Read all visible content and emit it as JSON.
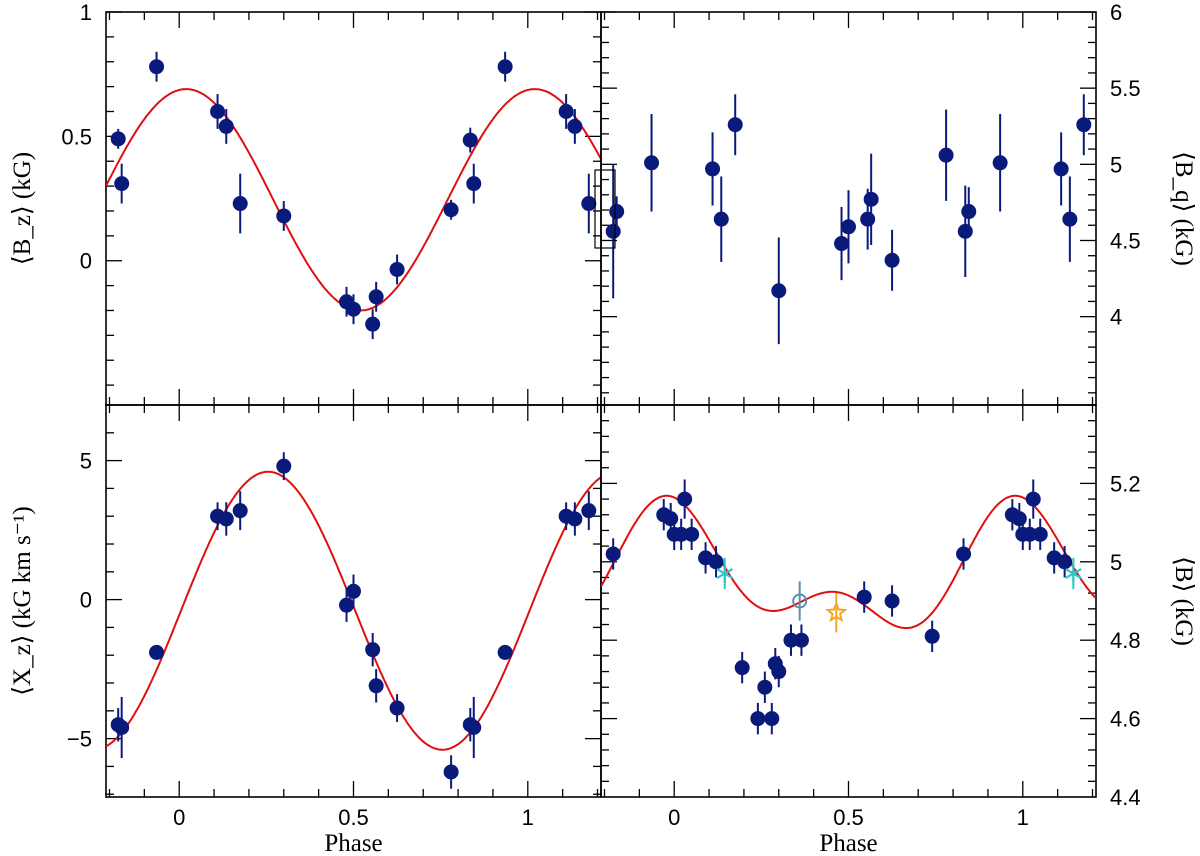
{
  "colors": {
    "points": "#0a1a7a",
    "fit": "#e01010",
    "cyan_asterisk": "#2ec4c9",
    "open_circle": "#5a8fb0",
    "orange_star": "#f5a623",
    "frame": "#000000"
  },
  "chart_data": [
    {
      "type": "scatter",
      "panel": "top-left",
      "xlabel": "",
      "ylabel": "⟨B_z⟩ (kG)",
      "xlim": [
        -0.21,
        1.21
      ],
      "ylim": [
        -0.58,
        1.0
      ],
      "yticks": [
        0,
        0.5,
        1
      ],
      "ytick_labels": [
        "0",
        "0.5",
        "1"
      ],
      "y_axis_side": "left",
      "show_x_tick_labels": false,
      "fit": {
        "type": "sine",
        "mean": 0.245,
        "amp": 0.445,
        "phase_max": 0.02,
        "harmonic2": 0,
        "phi2": 0
      },
      "points": [
        {
          "x": -0.175,
          "y": 0.49,
          "err": 0.04
        },
        {
          "x": -0.165,
          "y": 0.31,
          "err": 0.08
        },
        {
          "x": -0.065,
          "y": 0.78,
          "err": 0.06
        },
        {
          "x": 0.11,
          "y": 0.6,
          "err": 0.07
        },
        {
          "x": 0.135,
          "y": 0.54,
          "err": 0.07
        },
        {
          "x": 0.175,
          "y": 0.23,
          "err": 0.12
        },
        {
          "x": 0.3,
          "y": 0.18,
          "err": 0.06
        },
        {
          "x": 0.48,
          "y": -0.165,
          "err": 0.06
        },
        {
          "x": 0.5,
          "y": -0.195,
          "err": 0.06
        },
        {
          "x": 0.555,
          "y": -0.255,
          "err": 0.06
        },
        {
          "x": 0.565,
          "y": -0.145,
          "err": 0.06
        },
        {
          "x": 0.625,
          "y": -0.035,
          "err": 0.06
        },
        {
          "x": 0.78,
          "y": 0.205,
          "err": 0.04
        },
        {
          "x": 0.835,
          "y": 0.485,
          "err": 0.05
        },
        {
          "x": 0.845,
          "y": 0.31,
          "err": 0.08
        },
        {
          "x": 0.935,
          "y": 0.78,
          "err": 0.06
        },
        {
          "x": 1.11,
          "y": 0.6,
          "err": 0.07
        },
        {
          "x": 1.135,
          "y": 0.54,
          "err": 0.07
        },
        {
          "x": 1.175,
          "y": 0.23,
          "err": 0.12
        }
      ]
    },
    {
      "type": "scatter",
      "panel": "top-right",
      "xlabel": "",
      "ylabel": "⟨B_q⟩ (kG)",
      "xlim": [
        -0.21,
        1.21
      ],
      "ylim": [
        3.42,
        6.0
      ],
      "yticks": [
        4,
        4.5,
        5,
        5.5,
        6
      ],
      "ytick_labels": [
        "4",
        "4.5",
        "5",
        "5.5",
        "6"
      ],
      "y_axis_side": "right",
      "show_x_tick_labels": false,
      "points": [
        {
          "x": -0.175,
          "y": 4.56,
          "err": 0.44
        },
        {
          "x": -0.165,
          "y": 4.69,
          "err": 0.1
        },
        {
          "x": -0.065,
          "y": 5.01,
          "err": 0.32
        },
        {
          "x": 0.11,
          "y": 4.97,
          "err": 0.24
        },
        {
          "x": 0.135,
          "y": 4.64,
          "err": 0.28
        },
        {
          "x": 0.175,
          "y": 5.26,
          "err": 0.2
        },
        {
          "x": 0.3,
          "y": 4.17,
          "err": 0.35
        },
        {
          "x": 0.48,
          "y": 4.48,
          "err": 0.24
        },
        {
          "x": 0.5,
          "y": 4.59,
          "err": 0.24
        },
        {
          "x": 0.555,
          "y": 4.64,
          "err": 0.2
        },
        {
          "x": 0.565,
          "y": 4.77,
          "err": 0.3
        },
        {
          "x": 0.625,
          "y": 4.37,
          "err": 0.2
        },
        {
          "x": 0.78,
          "y": 5.06,
          "err": 0.3
        },
        {
          "x": 0.835,
          "y": 4.56,
          "err": 0.3
        },
        {
          "x": 0.845,
          "y": 4.69,
          "err": 0.16
        },
        {
          "x": 0.935,
          "y": 5.01,
          "err": 0.32
        },
        {
          "x": 1.11,
          "y": 4.97,
          "err": 0.24
        },
        {
          "x": 1.135,
          "y": 4.64,
          "err": 0.28
        },
        {
          "x": 1.175,
          "y": 5.26,
          "err": 0.2
        }
      ]
    },
    {
      "type": "scatter",
      "panel": "bottom-left",
      "xlabel": "Phase",
      "ylabel": "⟨X_z⟩ (kG km s⁻¹)",
      "xlim": [
        -0.21,
        1.21
      ],
      "ylim": [
        -7.1,
        7.0
      ],
      "xticks": [
        0,
        0.5,
        1
      ],
      "xtick_labels": [
        "0",
        "0.5",
        "1"
      ],
      "yticks": [
        -5,
        0,
        5
      ],
      "ytick_labels": [
        "−5",
        "0",
        "5"
      ],
      "y_axis_side": "left",
      "show_x_tick_labels": true,
      "fit": {
        "type": "sine",
        "mean": -0.4,
        "amp": 5.0,
        "phase_max": 0.255,
        "harmonic2": 0,
        "phi2": 0
      },
      "points": [
        {
          "x": -0.175,
          "y": -4.5,
          "err": 0.6
        },
        {
          "x": -0.165,
          "y": -4.6,
          "err": 1.1
        },
        {
          "x": -0.065,
          "y": -1.9,
          "err": 0.2
        },
        {
          "x": 0.11,
          "y": 3.0,
          "err": 0.5
        },
        {
          "x": 0.135,
          "y": 2.9,
          "err": 0.6
        },
        {
          "x": 0.175,
          "y": 3.2,
          "err": 0.7
        },
        {
          "x": 0.3,
          "y": 4.8,
          "err": 0.5
        },
        {
          "x": 0.48,
          "y": -0.2,
          "err": 0.6
        },
        {
          "x": 0.5,
          "y": 0.3,
          "err": 0.6
        },
        {
          "x": 0.555,
          "y": -1.8,
          "err": 0.6
        },
        {
          "x": 0.565,
          "y": -3.1,
          "err": 0.6
        },
        {
          "x": 0.625,
          "y": -3.9,
          "err": 0.5
        },
        {
          "x": 0.78,
          "y": -6.2,
          "err": 0.6
        },
        {
          "x": 0.835,
          "y": -4.5,
          "err": 0.6
        },
        {
          "x": 0.845,
          "y": -4.6,
          "err": 1.1
        },
        {
          "x": 0.935,
          "y": -1.9,
          "err": 0.2
        },
        {
          "x": 1.11,
          "y": 3.0,
          "err": 0.5
        },
        {
          "x": 1.135,
          "y": 2.9,
          "err": 0.6
        },
        {
          "x": 1.175,
          "y": 3.2,
          "err": 0.7
        }
      ]
    },
    {
      "type": "scatter",
      "panel": "bottom-right",
      "xlabel": "Phase",
      "ylabel": "⟨B⟩ (kG)",
      "xlim": [
        -0.21,
        1.21
      ],
      "ylim": [
        4.4,
        5.4
      ],
      "xticks": [
        0,
        0.5,
        1
      ],
      "xtick_labels": [
        "0",
        "0.5",
        "1"
      ],
      "yticks": [
        4.4,
        4.6,
        4.8,
        5,
        5.2
      ],
      "ytick_labels": [
        "4.4",
        "4.6",
        "4.8",
        "5",
        "5.2"
      ],
      "y_axis_side": "right",
      "show_x_tick_labels": true,
      "fit": {
        "type": "double-sine",
        "mean": 4.96,
        "amp": 0.125,
        "phase_max": 0.0,
        "harmonic2": 0.085,
        "phi2": -0.03
      },
      "points": [
        {
          "x": -0.175,
          "y": 5.02,
          "err": 0.04
        },
        {
          "x": -0.03,
          "y": 5.12,
          "err": 0.04
        },
        {
          "x": -0.01,
          "y": 5.11,
          "err": 0.04
        },
        {
          "x": 0.0,
          "y": 5.07,
          "err": 0.04
        },
        {
          "x": 0.02,
          "y": 5.07,
          "err": 0.04
        },
        {
          "x": 0.05,
          "y": 5.07,
          "err": 0.04
        },
        {
          "x": 0.03,
          "y": 5.16,
          "err": 0.05
        },
        {
          "x": 0.09,
          "y": 5.01,
          "err": 0.04
        },
        {
          "x": 0.12,
          "y": 5.0,
          "err": 0.04
        },
        {
          "x": 0.195,
          "y": 4.73,
          "err": 0.04
        },
        {
          "x": 0.24,
          "y": 4.6,
          "err": 0.04
        },
        {
          "x": 0.26,
          "y": 4.68,
          "err": 0.04
        },
        {
          "x": 0.28,
          "y": 4.6,
          "err": 0.04
        },
        {
          "x": 0.29,
          "y": 4.74,
          "err": 0.04
        },
        {
          "x": 0.3,
          "y": 4.72,
          "err": 0.04
        },
        {
          "x": 0.335,
          "y": 4.8,
          "err": 0.04
        },
        {
          "x": 0.365,
          "y": 4.8,
          "err": 0.04
        },
        {
          "x": 0.545,
          "y": 4.91,
          "err": 0.04
        },
        {
          "x": 0.625,
          "y": 4.9,
          "err": 0.04
        },
        {
          "x": 0.74,
          "y": 4.81,
          "err": 0.04
        },
        {
          "x": 0.83,
          "y": 5.02,
          "err": 0.04
        },
        {
          "x": 0.97,
          "y": 5.12,
          "err": 0.04
        },
        {
          "x": 0.99,
          "y": 5.11,
          "err": 0.04
        },
        {
          "x": 1.0,
          "y": 5.07,
          "err": 0.04
        },
        {
          "x": 1.02,
          "y": 5.07,
          "err": 0.04
        },
        {
          "x": 1.05,
          "y": 5.07,
          "err": 0.04
        },
        {
          "x": 1.03,
          "y": 5.16,
          "err": 0.05
        },
        {
          "x": 1.09,
          "y": 5.01,
          "err": 0.04
        },
        {
          "x": 1.12,
          "y": 5.0,
          "err": 0.04
        }
      ],
      "special_markers": [
        {
          "marker": "asterisk",
          "color_key": "cyan_asterisk",
          "x": 0.145,
          "y": 4.97,
          "err": 0.04
        },
        {
          "marker": "asterisk",
          "color_key": "cyan_asterisk",
          "x": 1.145,
          "y": 4.97,
          "err": 0.04
        },
        {
          "marker": "open-circle",
          "color_key": "open_circle",
          "x": 0.36,
          "y": 4.9,
          "err": 0.05
        },
        {
          "marker": "star",
          "color_key": "orange_star",
          "x": 0.465,
          "y": 4.87,
          "err": 0.05
        }
      ]
    }
  ]
}
